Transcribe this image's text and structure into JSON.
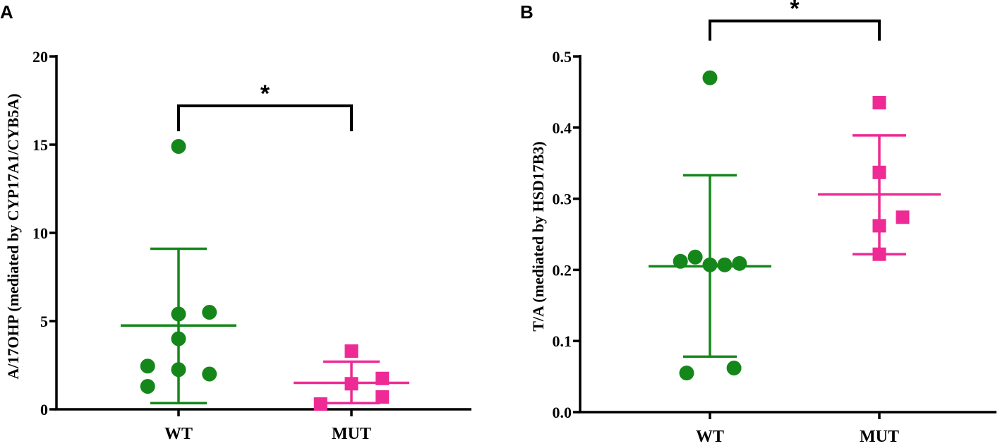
{
  "chart_data": [
    {
      "type": "scatter",
      "panel_label": "A",
      "ylabel": "A/17OHP (mediated by CYP17A1/CYB5A)",
      "xlabel": "",
      "categories": [
        "WT",
        "MUT"
      ],
      "ylim": [
        0,
        20
      ],
      "yticks": [
        0,
        5,
        10,
        15,
        20
      ],
      "ytick_labels": [
        "0",
        "5",
        "10",
        "15",
        "20"
      ],
      "series": [
        {
          "name": "WT",
          "marker": "circle",
          "color": "#15871a",
          "points": [
            [
              -0.35,
              1.3
            ],
            [
              -0.35,
              2.45
            ],
            [
              0.0,
              2.25
            ],
            [
              0.35,
              2.0
            ],
            [
              0.0,
              4.0
            ],
            [
              0.0,
              5.4
            ],
            [
              0.35,
              5.5
            ],
            [
              0.0,
              14.9
            ]
          ],
          "mean": 4.75,
          "sd_low": 0.35,
          "sd_high": 9.1
        },
        {
          "name": "MUT",
          "marker": "square",
          "color": "#ee2a94",
          "points": [
            [
              -0.35,
              0.3
            ],
            [
              0.0,
              1.45
            ],
            [
              0.35,
              0.7
            ],
            [
              0.35,
              1.75
            ],
            [
              0.0,
              3.3
            ]
          ],
          "mean": 1.5,
          "sd_low": 0.35,
          "sd_high": 2.7
        }
      ],
      "significance": {
        "label": "*",
        "between": [
          "WT",
          "MUT"
        ],
        "y": 17.2
      }
    },
    {
      "type": "scatter",
      "panel_label": "B",
      "ylabel": "T/A (mediated by HSD17B3)",
      "xlabel": "",
      "categories": [
        "WT",
        "MUT"
      ],
      "ylim": [
        0,
        0.5
      ],
      "yticks": [
        0,
        0.1,
        0.2,
        0.3,
        0.4,
        0.5
      ],
      "ytick_labels": [
        "0.0",
        "0.1",
        "0.2",
        "0.3",
        "0.4",
        "0.5"
      ],
      "series": [
        {
          "name": "WT",
          "marker": "circle",
          "color": "#15871a",
          "points": [
            [
              -0.38,
              0.212
            ],
            [
              -0.19,
              0.218
            ],
            [
              0.0,
              0.207
            ],
            [
              0.19,
              0.207
            ],
            [
              0.38,
              0.209
            ],
            [
              -0.3,
              0.055
            ],
            [
              0.31,
              0.062
            ],
            [
              0.0,
              0.47
            ]
          ],
          "mean": 0.205,
          "sd_low": 0.078,
          "sd_high": 0.333
        },
        {
          "name": "MUT",
          "marker": "square",
          "color": "#ee2a94",
          "points": [
            [
              0.0,
              0.435
            ],
            [
              0.0,
              0.337
            ],
            [
              0.0,
              0.262
            ],
            [
              0.0,
              0.222
            ],
            [
              0.3,
              0.274
            ]
          ],
          "mean": 0.306,
          "sd_low": 0.222,
          "sd_high": 0.389
        }
      ],
      "significance": {
        "label": "*",
        "between": [
          "WT",
          "MUT"
        ],
        "y": 0.55
      }
    }
  ]
}
